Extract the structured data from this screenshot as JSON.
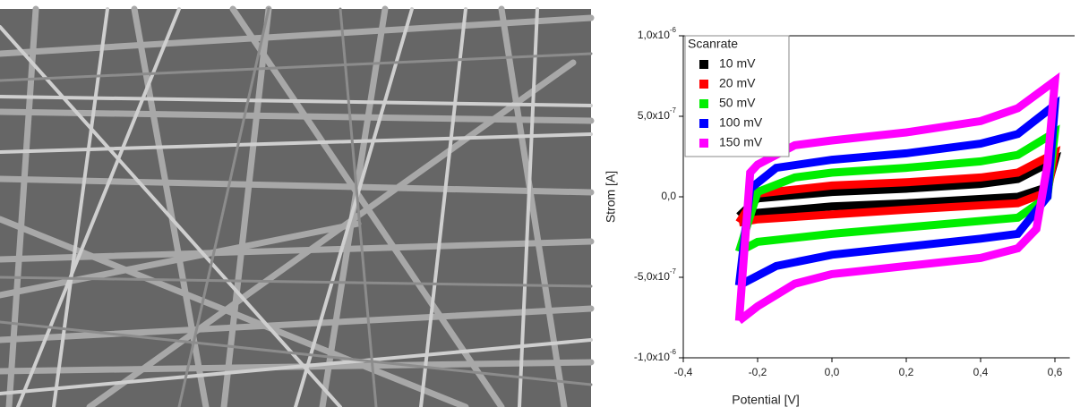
{
  "chart_data": {
    "type": "line",
    "xlabel": "Potential [V]",
    "ylabel": "Strom [A]",
    "legend_title": "Scanrate",
    "legend": "upper left",
    "xlim": [
      -0.4,
      0.64
    ],
    "ylim": [
      -1e-06,
      1e-06
    ],
    "xticks": [
      {
        "value": -0.4,
        "label": "-0,4"
      },
      {
        "value": -0.2,
        "label": "-0,2"
      },
      {
        "value": 0,
        "label": "0,0"
      },
      {
        "value": 0.2,
        "label": "0,2"
      },
      {
        "value": 0.4,
        "label": "0,4"
      },
      {
        "value": 0.6,
        "label": "0,6"
      }
    ],
    "yticks": [
      {
        "value": -1e-06,
        "label": "-1,0x10-6"
      },
      {
        "value": -5e-07,
        "label": "-5,0x10-7"
      },
      {
        "value": 0,
        "label": "0,0"
      },
      {
        "value": 5e-07,
        "label": "5,0x10-7"
      },
      {
        "value": 1e-06,
        "label": "1,0x10-6"
      }
    ],
    "series": [
      {
        "name": "10 mV",
        "color": "#000000",
        "x": [
          -0.25,
          -0.2,
          0,
          0.2,
          0.4,
          0.5,
          0.6,
          0.58,
          0.5,
          0.2,
          0,
          -0.2,
          -0.25
        ],
        "values": [
          -1.2e-07,
          -1e-08,
          3e-08,
          5e-08,
          8e-08,
          1.1e-07,
          2.3e-07,
          6e-08,
          0,
          -4e-08,
          -6e-08,
          -1e-07,
          -1.2e-07
        ]
      },
      {
        "name": "20 mV",
        "color": "#ff0000",
        "x": [
          -0.25,
          -0.2,
          0,
          0.2,
          0.4,
          0.5,
          0.6,
          0.58,
          0.5,
          0.2,
          0,
          -0.2,
          -0.25
        ],
        "values": [
          -1.6e-07,
          2e-08,
          7e-08,
          9e-08,
          1.2e-07,
          1.5e-07,
          2.7e-07,
          3e-08,
          -4e-08,
          -8e-08,
          -1.1e-07,
          -1.4e-07,
          -1.6e-07
        ]
      },
      {
        "name": "50 mV",
        "color": "#00ee00",
        "x": [
          -0.25,
          -0.2,
          -0.1,
          0,
          0.2,
          0.4,
          0.5,
          0.6,
          0.58,
          0.5,
          0.2,
          0,
          -0.2,
          -0.25
        ],
        "values": [
          -3.4e-07,
          3e-08,
          1.2e-07,
          1.5e-07,
          1.8e-07,
          2.2e-07,
          2.6e-07,
          4e-07,
          0,
          -1.3e-07,
          -1.9e-07,
          -2.3e-07,
          -2.8e-07,
          -3.4e-07
        ]
      },
      {
        "name": "100 mV",
        "color": "#0000ff",
        "x": [
          -0.25,
          -0.22,
          -0.15,
          0,
          0.2,
          0.4,
          0.5,
          0.6,
          0.58,
          0.5,
          0.4,
          0.2,
          0,
          -0.15,
          -0.25
        ],
        "values": [
          -5.5e-07,
          5e-08,
          1.8e-07,
          2.3e-07,
          2.7e-07,
          3.3e-07,
          3.9e-07,
          5.7e-07,
          0,
          -2.3e-07,
          -2.6e-07,
          -3.1e-07,
          -3.6e-07,
          -4.3e-07,
          -5.5e-07
        ]
      },
      {
        "name": "150 mV",
        "color": "#ff00ff",
        "x": [
          -0.25,
          -0.22,
          -0.2,
          -0.1,
          0,
          0.2,
          0.4,
          0.5,
          0.6,
          0.58,
          0.55,
          0.5,
          0.4,
          0.2,
          0,
          -0.1,
          -0.2,
          -0.25
        ],
        "values": [
          -7.7e-07,
          1.5e-07,
          2e-07,
          3.2e-07,
          3.5e-07,
          4e-07,
          4.7e-07,
          5.5e-07,
          7.2e-07,
          2e-07,
          -2e-07,
          -3.2e-07,
          -3.8e-07,
          -4.3e-07,
          -4.8e-07,
          -5.4e-07,
          -6.8e-07,
          -7.7e-07
        ]
      }
    ]
  }
}
